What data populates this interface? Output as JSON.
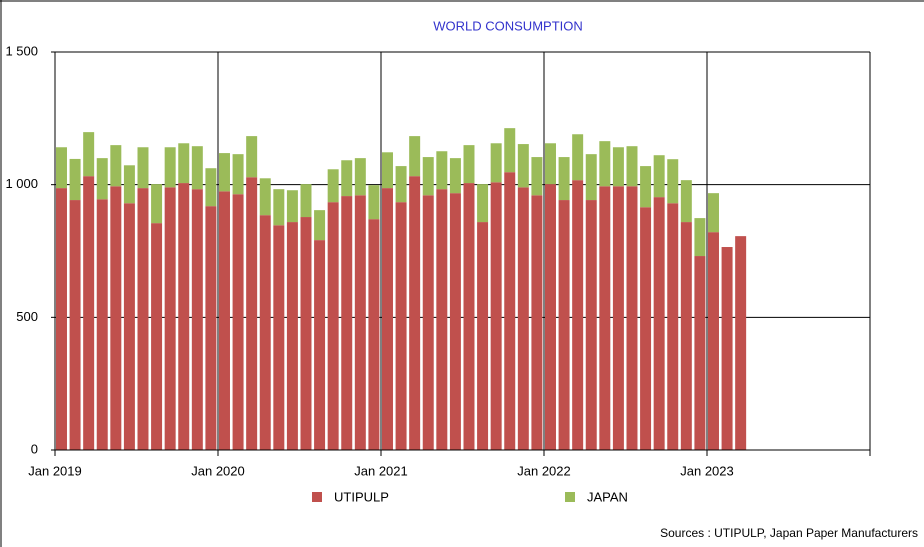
{
  "chart_data": {
    "type": "bar",
    "stacked": true,
    "title": "WORLD CONSUMPTION",
    "source": "Sources : UTIPULP, Japan Paper Manufacturers",
    "categories": [
      "Jan 2019",
      null,
      null,
      null,
      null,
      null,
      null,
      null,
      null,
      null,
      null,
      null,
      "Jan 2020",
      null,
      null,
      null,
      null,
      null,
      null,
      null,
      null,
      null,
      null,
      null,
      "Jan 2021",
      null,
      null,
      null,
      null,
      null,
      null,
      null,
      null,
      null,
      null,
      null,
      "Jan 2022",
      null,
      null,
      null,
      null,
      null,
      null,
      null,
      null,
      null,
      null,
      null,
      "Jan 2023",
      null,
      null,
      null,
      null,
      null,
      null,
      null,
      null,
      null,
      null,
      null
    ],
    "series": [
      {
        "name": "UTIPULP",
        "color": "#c0504d",
        "values": [
          987,
          942,
          1032,
          945,
          994,
          930,
          987,
          855,
          990,
          1006,
          983,
          919,
          975,
          964,
          1028,
          885,
          847,
          859,
          878,
          791,
          934,
          957,
          960,
          870,
          987,
          934,
          1032,
          960,
          983,
          968,
          1006,
          859,
          1009,
          1047,
          990,
          960,
          1002,
          942,
          1017,
          942,
          994,
          994,
          994,
          915,
          953,
          930,
          859,
          731,
          821,
          765,
          806,
          null,
          null,
          null,
          null,
          null,
          null,
          null,
          null,
          null
        ]
      },
      {
        "name": "JAPAN",
        "color": "#9bbb59",
        "values": [
          154,
          155,
          166,
          155,
          155,
          143,
          154,
          147,
          151,
          150,
          162,
          143,
          144,
          151,
          155,
          139,
          136,
          120,
          124,
          113,
          124,
          135,
          140,
          128,
          135,
          136,
          151,
          144,
          143,
          132,
          143,
          143,
          147,
          166,
          163,
          144,
          154,
          162,
          173,
          173,
          170,
          147,
          151,
          155,
          158,
          166,
          158,
          143,
          147,
          null,
          null,
          null,
          null,
          null,
          null,
          null,
          null,
          null,
          null,
          null
        ]
      }
    ],
    "ylim": [
      0,
      1500
    ],
    "yticks": [
      0,
      500,
      {
        "value": 1000,
        "label": "1 000"
      },
      {
        "value": 1500,
        "label": "1 500"
      }
    ],
    "grid": true
  }
}
